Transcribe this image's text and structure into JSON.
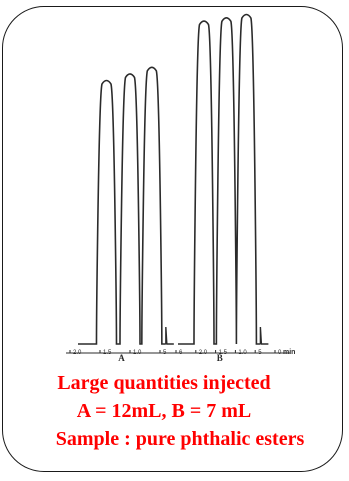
{
  "chart_data": {
    "type": "line",
    "title": "",
    "xlabel": "min",
    "ylabel": "",
    "traces": [
      {
        "name": "A",
        "peaks": [
          {
            "center": 0.22,
            "height": 0.8
          },
          {
            "center": 0.5,
            "height": 0.82
          },
          {
            "center": 0.76,
            "height": 0.84
          }
        ],
        "tick_labels": [
          "2.0",
          "1.5",
          "1.0",
          "5"
        ]
      },
      {
        "name": "B",
        "peaks": [
          {
            "center": 0.2,
            "height": 0.98
          },
          {
            "center": 0.48,
            "height": 0.99
          },
          {
            "center": 0.73,
            "height": 1.0
          }
        ],
        "tick_labels": [
          "6",
          "2.0",
          "1.5",
          "1.0",
          "5",
          "0"
        ]
      }
    ]
  },
  "caption": {
    "line1": "Large quantities injected",
    "line2": "A = 12mL, B = 7 mL",
    "line3": "Sample : pure  phthalic esters"
  },
  "colors": {
    "caption": "#ff0000",
    "trace": "#2b2b2b"
  }
}
